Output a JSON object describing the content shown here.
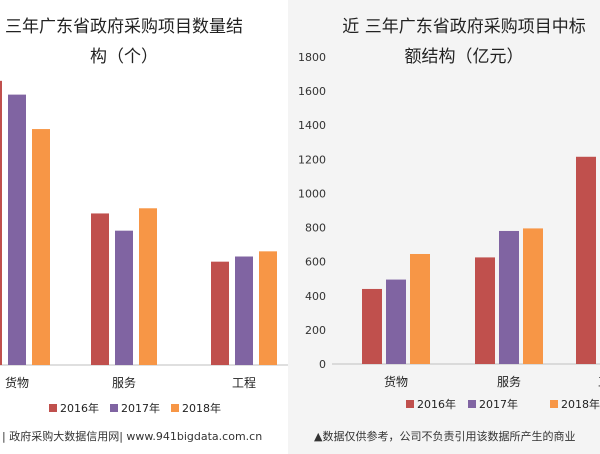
{
  "colors": {
    "2016": "#c0504d",
    "2017": "#8064a2",
    "2018": "#f79646"
  },
  "footers": {
    "left": "| 政府采购大数据信用网| www.941bigdata.com.cn",
    "right": "▲数据仅供参考，公司不负责引用该数据所产生的商业"
  },
  "chart_data": [
    {
      "type": "bar",
      "title": "三年广东省政府采购项目数量结构（个）",
      "title_lines": [
        "三年广东省政府采购项目数量结",
        "构（个）"
      ],
      "categories": [
        "货物",
        "服务",
        "工程"
      ],
      "series": [
        {
          "name": "2016年",
          "values": [
            1650,
            880,
            600
          ]
        },
        {
          "name": "2017年",
          "values": [
            1570,
            780,
            630
          ]
        },
        {
          "name": "2018年",
          "values": [
            1370,
            910,
            660
          ]
        }
      ],
      "ylim": [
        0,
        1800
      ],
      "y_axis_visible": false,
      "legend": "bottom"
    },
    {
      "type": "bar",
      "title": "近三年广东省政府采购项目中标金额结构（亿元）",
      "title_lines": [
        "近 三年广东省政府采购项目中标",
        "额结构（亿元）"
      ],
      "categories": [
        "货物",
        "服务",
        "工程"
      ],
      "series": [
        {
          "name": "2016年",
          "values": [
            440,
            625,
            1215
          ]
        },
        {
          "name": "2017年",
          "values": [
            495,
            780,
            null
          ]
        },
        {
          "name": "2018年",
          "values": [
            645,
            795,
            null
          ]
        }
      ],
      "ylim": [
        0,
        1800
      ],
      "yticks": [
        0,
        200,
        400,
        600,
        800,
        1000,
        1200,
        1400,
        1600,
        1800
      ],
      "legend": "bottom"
    }
  ]
}
